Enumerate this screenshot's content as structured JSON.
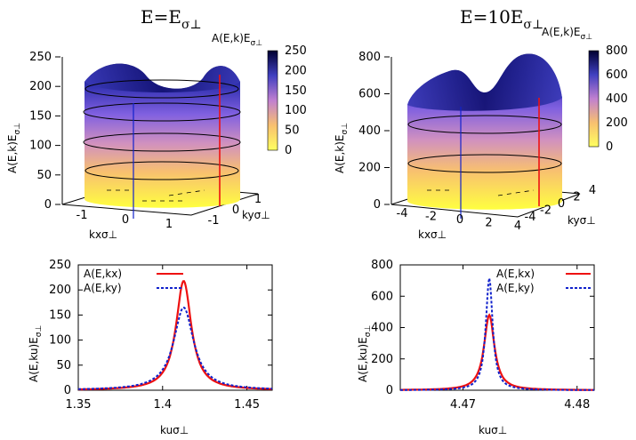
{
  "panels_top": [
    {
      "title": "E=E",
      "title_sub": "σ⊥",
      "ylabel": "A(E,k)E",
      "ylabel_sub": "σ⊥",
      "xlabel": "kxσ⊥",
      "ylabel2": "kyσ⊥",
      "colorbar_label": "A(E,k)E",
      "colorbar_label_sub": "σ⊥"
    },
    {
      "title": "E=10E",
      "title_sub": "σ⊥",
      "ylabel": "A(E,k)E",
      "ylabel_sub": "σ⊥",
      "xlabel": "kxσ⊥",
      "ylabel2": "kyσ⊥",
      "colorbar_label": "A(E,k)E",
      "colorbar_label_sub": "σ⊥"
    }
  ],
  "panels_bottom": [
    {
      "ylabel": "A(E,ku)E",
      "ylabel_sub": "σ⊥",
      "xlabel": "kuσ⊥",
      "legend": [
        "A(E,kx)",
        "A(E,ky)"
      ]
    },
    {
      "ylabel": "A(E,ku)E",
      "ylabel_sub": "σ⊥",
      "xlabel": "kuσ⊥",
      "legend": [
        "A(E,kx)",
        "A(E,ky)"
      ]
    }
  ],
  "colors": {
    "kx": "#ee1111",
    "ky": "#1122cc",
    "surface_low": "#ffff40",
    "surface_high": "#101070"
  },
  "chart_data": [
    {
      "type": "surface",
      "panel": "top-left",
      "z_ticks": [
        "0",
        "50",
        "100",
        "150",
        "200",
        "250"
      ],
      "zlim": [
        0,
        250
      ],
      "x_ticks": [
        "-1",
        "0",
        "1"
      ],
      "y_ticks": [
        "-1",
        "0",
        "1"
      ],
      "colorbar_ticks": [
        "0",
        "50",
        "100",
        "150",
        "200",
        "250"
      ],
      "peak_max": 220
    },
    {
      "type": "surface",
      "panel": "top-right",
      "z_ticks": [
        "0",
        "200",
        "400",
        "600",
        "800"
      ],
      "zlim": [
        0,
        800
      ],
      "x_ticks": [
        "-4",
        "-2",
        "0",
        "2",
        "4"
      ],
      "y_ticks": [
        "-4",
        "-2",
        "0",
        "2",
        "4"
      ],
      "colorbar_ticks": [
        "0",
        "200",
        "400",
        "600",
        "800"
      ],
      "peak_max": 710
    },
    {
      "type": "line",
      "panel": "bottom-left",
      "xlim": [
        1.35,
        1.465
      ],
      "ylim": [
        0,
        250
      ],
      "x_ticks": [
        "1.35",
        "1.4",
        "1.45"
      ],
      "x_tick_values": [
        1.35,
        1.4,
        1.45
      ],
      "y_ticks": [
        "0",
        "50",
        "100",
        "150",
        "200",
        "250"
      ],
      "series": [
        {
          "name": "A(E,kx)",
          "center": 1.4125,
          "peak": 218,
          "hwhm": 0.0055
        },
        {
          "name": "A(E,ky)",
          "center": 1.4125,
          "peak": 165,
          "hwhm": 0.0072
        }
      ]
    },
    {
      "type": "line",
      "panel": "bottom-right",
      "xlim": [
        4.4645,
        4.4815
      ],
      "ylim": [
        0,
        800
      ],
      "x_ticks": [
        "4.47",
        "4.48"
      ],
      "x_tick_values": [
        4.47,
        4.48
      ],
      "y_ticks": [
        "0",
        "200",
        "400",
        "600",
        "800"
      ],
      "series": [
        {
          "name": "A(E,kx)",
          "center": 4.4723,
          "peak": 480,
          "hwhm": 0.00055
        },
        {
          "name": "A(E,ky)",
          "center": 4.4723,
          "peak": 715,
          "hwhm": 0.00036
        }
      ]
    }
  ]
}
